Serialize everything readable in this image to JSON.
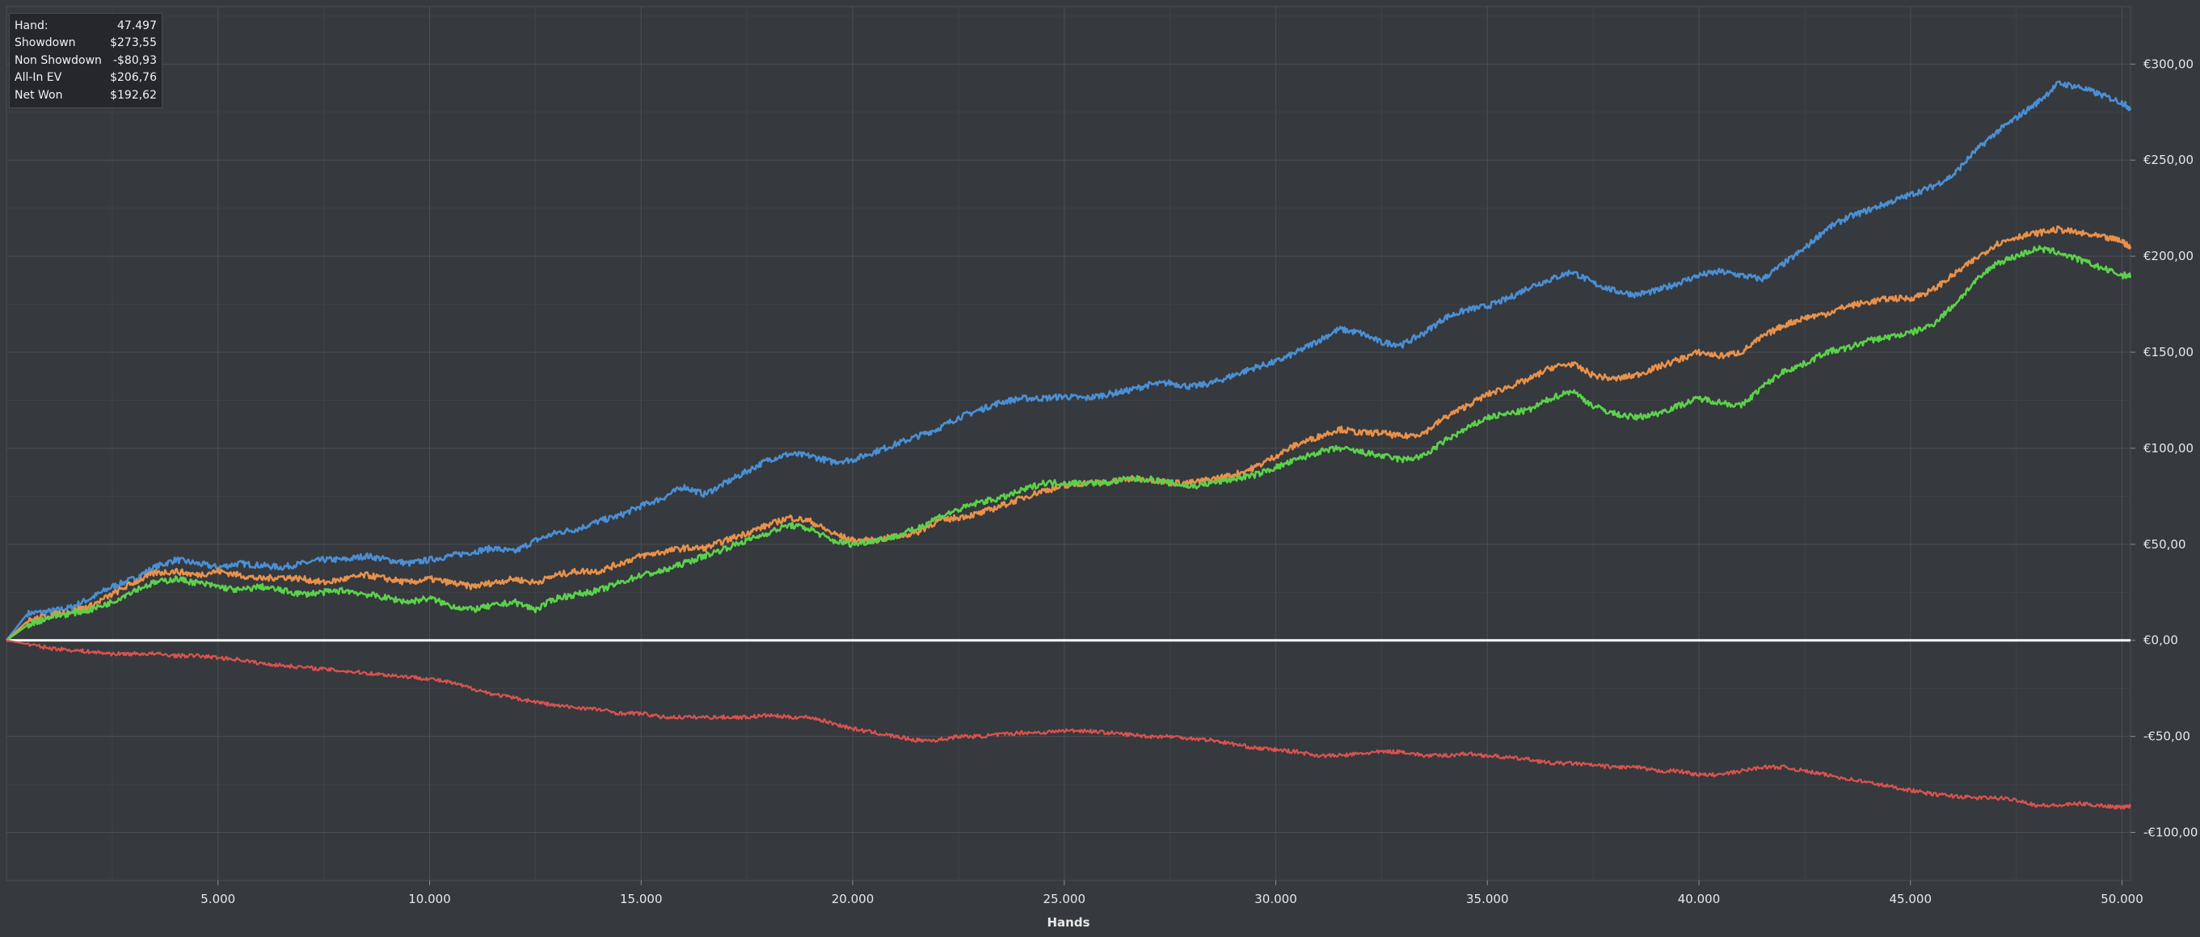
{
  "info_box": {
    "rows": [
      {
        "label": "Hand:",
        "value": "47.497"
      },
      {
        "label": "Showdown",
        "value": "$273,55"
      },
      {
        "label": "Non Showdown",
        "value": "-$80,93"
      },
      {
        "label": "All-In EV",
        "value": "$206,76"
      },
      {
        "label": "Net Won",
        "value": "$192,62"
      }
    ]
  },
  "chart_data": {
    "type": "line",
    "title": "",
    "xlabel": "Hands",
    "ylabel": "",
    "xlim": [
      0,
      50200
    ],
    "ylim": [
      -125,
      330
    ],
    "grid": true,
    "x_ticks": [
      {
        "value": 5000,
        "label": "5.000"
      },
      {
        "value": 10000,
        "label": "10.000"
      },
      {
        "value": 15000,
        "label": "15.000"
      },
      {
        "value": 20000,
        "label": "20.000"
      },
      {
        "value": 25000,
        "label": "25.000"
      },
      {
        "value": 30000,
        "label": "30.000"
      },
      {
        "value": 35000,
        "label": "35.000"
      },
      {
        "value": 40000,
        "label": "40.000"
      },
      {
        "value": 45000,
        "label": "45.000"
      },
      {
        "value": 50000,
        "label": "50.000"
      }
    ],
    "y_ticks": [
      {
        "value": 300,
        "label": "€300,00"
      },
      {
        "value": 250,
        "label": "€250,00"
      },
      {
        "value": 200,
        "label": "€200,00"
      },
      {
        "value": 150,
        "label": "€150,00"
      },
      {
        "value": 100,
        "label": "€100,00"
      },
      {
        "value": 50,
        "label": "€50,00"
      },
      {
        "value": 0,
        "label": "€0,00"
      },
      {
        "value": -50,
        "label": "-€50,00"
      },
      {
        "value": -100,
        "label": "-€100,00"
      }
    ],
    "x": [
      0,
      500,
      1000,
      1500,
      2000,
      2500,
      3000,
      3500,
      4000,
      4500,
      5000,
      5500,
      6000,
      6500,
      7000,
      7500,
      8000,
      8500,
      9000,
      9500,
      10000,
      10500,
      11000,
      11500,
      12000,
      12500,
      13000,
      13500,
      14000,
      14500,
      15000,
      15500,
      16000,
      16500,
      17000,
      17500,
      18000,
      18500,
      19000,
      19500,
      20000,
      20500,
      21000,
      21500,
      22000,
      22500,
      23000,
      23500,
      24000,
      24500,
      25000,
      25500,
      26000,
      26500,
      27000,
      27500,
      28000,
      28500,
      29000,
      29500,
      30000,
      30500,
      31000,
      31500,
      32000,
      32500,
      33000,
      33500,
      34000,
      34500,
      35000,
      35500,
      36000,
      36500,
      37000,
      37500,
      38000,
      38500,
      39000,
      39500,
      40000,
      40500,
      41000,
      41500,
      42000,
      42500,
      43000,
      43500,
      44000,
      44500,
      45000,
      45500,
      46000,
      46500,
      47000,
      47500,
      48000,
      48500,
      49000,
      49500,
      50000,
      50200
    ],
    "series": [
      {
        "color": "#4a8fd4",
        "values": [
          0,
          14,
          15,
          17,
          22,
          28,
          32,
          38,
          42,
          40,
          38,
          40,
          39,
          38,
          40,
          42,
          42,
          44,
          42,
          40,
          42,
          44,
          46,
          48,
          46,
          52,
          56,
          58,
          62,
          65,
          70,
          74,
          80,
          76,
          82,
          88,
          94,
          97,
          96,
          93,
          94,
          98,
          102,
          106,
          110,
          116,
          120,
          124,
          126,
          126,
          127,
          126,
          128,
          130,
          133,
          134,
          132,
          134,
          138,
          142,
          145,
          150,
          156,
          162,
          160,
          155,
          154,
          160,
          168,
          172,
          174,
          178,
          184,
          188,
          192,
          186,
          182,
          180,
          182,
          186,
          190,
          192,
          190,
          188,
          196,
          204,
          214,
          220,
          224,
          228,
          232,
          236,
          242,
          254,
          264,
          272,
          280,
          290,
          288,
          284,
          280,
          277
        ]
      },
      {
        "color": "#e8914b",
        "values": [
          0,
          10,
          13,
          15,
          18,
          24,
          30,
          35,
          36,
          34,
          36,
          34,
          32,
          33,
          32,
          30,
          32,
          34,
          32,
          30,
          32,
          30,
          28,
          30,
          32,
          30,
          34,
          36,
          36,
          40,
          44,
          46,
          48,
          48,
          52,
          56,
          60,
          64,
          62,
          56,
          52,
          52,
          54,
          56,
          62,
          64,
          66,
          70,
          74,
          78,
          80,
          82,
          82,
          84,
          84,
          82,
          82,
          84,
          86,
          90,
          96,
          102,
          106,
          110,
          108,
          108,
          106,
          108,
          116,
          122,
          128,
          132,
          136,
          142,
          144,
          138,
          136,
          138,
          142,
          146,
          150,
          148,
          150,
          158,
          164,
          168,
          170,
          174,
          176,
          178,
          178,
          182,
          190,
          198,
          206,
          210,
          212,
          214,
          212,
          210,
          208,
          204
        ]
      },
      {
        "color": "#5bd14b",
        "values": [
          0,
          8,
          12,
          14,
          16,
          20,
          26,
          30,
          32,
          30,
          28,
          26,
          28,
          26,
          24,
          25,
          26,
          24,
          22,
          20,
          22,
          18,
          16,
          18,
          20,
          16,
          22,
          24,
          26,
          30,
          34,
          36,
          40,
          44,
          48,
          52,
          56,
          60,
          58,
          52,
          50,
          52,
          54,
          58,
          64,
          68,
          72,
          74,
          78,
          82,
          82,
          82,
          82,
          84,
          84,
          82,
          80,
          82,
          84,
          86,
          90,
          94,
          98,
          100,
          98,
          96,
          94,
          96,
          104,
          110,
          116,
          118,
          120,
          126,
          130,
          122,
          118,
          116,
          118,
          122,
          126,
          124,
          122,
          132,
          140,
          144,
          150,
          152,
          156,
          158,
          160,
          164,
          174,
          186,
          196,
          200,
          204,
          202,
          198,
          194,
          190,
          190
        ]
      },
      {
        "color": "#d9534f",
        "values": [
          0,
          -2,
          -4,
          -5,
          -6,
          -7,
          -7,
          -7,
          -8,
          -8,
          -9,
          -10,
          -12,
          -13,
          -14,
          -15,
          -16,
          -17,
          -18,
          -19,
          -20,
          -22,
          -25,
          -28,
          -30,
          -32,
          -34,
          -35,
          -36,
          -38,
          -38,
          -40,
          -40,
          -40,
          -40,
          -40,
          -39,
          -40,
          -40,
          -43,
          -46,
          -48,
          -50,
          -52,
          -52,
          -50,
          -50,
          -49,
          -48,
          -48,
          -47,
          -47,
          -48,
          -49,
          -50,
          -50,
          -51,
          -52,
          -54,
          -56,
          -57,
          -58,
          -60,
          -60,
          -59,
          -58,
          -58,
          -60,
          -60,
          -59,
          -60,
          -61,
          -62,
          -64,
          -64,
          -65,
          -66,
          -66,
          -68,
          -68,
          -70,
          -70,
          -68,
          -66,
          -66,
          -68,
          -70,
          -72,
          -74,
          -76,
          -78,
          -80,
          -81,
          -82,
          -82,
          -83,
          -86,
          -86,
          -85,
          -86,
          -87,
          -86
        ]
      }
    ]
  }
}
